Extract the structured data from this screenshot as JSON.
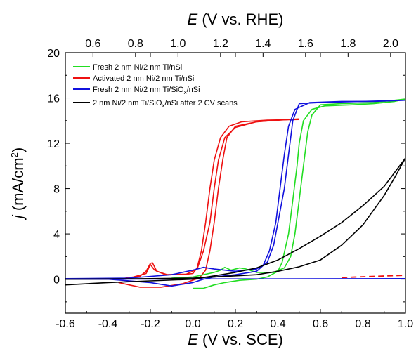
{
  "chart_data": {
    "type": "line",
    "x_axis": {
      "label_symbol": "E",
      "label_rest": " (V vs. SCE)",
      "range": [
        -0.6,
        1.0
      ],
      "ticks": [
        -0.6,
        -0.4,
        -0.2,
        0.0,
        0.2,
        0.4,
        0.6,
        0.8,
        1.0
      ],
      "tick_labels": [
        "-0.6",
        "-0.4",
        "-0.2",
        "0.0",
        "0.2",
        "0.4",
        "0.6",
        "0.8",
        "1.0"
      ]
    },
    "x2_axis": {
      "label_symbol": "E",
      "label_rest": " (V vs. RHE)",
      "offset_from_x": 1.07,
      "ticks": [
        0.6,
        0.8,
        1.0,
        1.2,
        1.4,
        1.6,
        1.8,
        2.0
      ],
      "tick_labels": [
        "0.6",
        "0.8",
        "1.0",
        "1.2",
        "1.4",
        "1.6",
        "1.8",
        "2.0"
      ]
    },
    "y_axis": {
      "label_symbol": "j",
      "label_rest": " (mA/cm",
      "label_sup": "2",
      "label_close": ")",
      "range": [
        -3,
        20
      ],
      "ticks": [
        0,
        4,
        8,
        12,
        16,
        20
      ],
      "tick_labels": [
        "0",
        "4",
        "8",
        "12",
        "16",
        "20"
      ]
    },
    "legend": {
      "position": "top-left",
      "entries": [
        {
          "color": "#22dd22",
          "parts": [
            {
              "t": "Fresh 2 nm Ni/2 nm Ti/nSi"
            }
          ]
        },
        {
          "color": "#ee1111",
          "parts": [
            {
              "t": "Activated 2 nm Ni/2 nm Ti/nSi"
            }
          ]
        },
        {
          "color": "#1111dd",
          "parts": [
            {
              "t": "Fresh 2 nm Ni/2 nm Ti/SiO"
            },
            {
              "t": "x",
              "sub": true
            },
            {
              "t": "/nSi"
            }
          ]
        },
        {
          "color": "#000000",
          "parts": [
            {
              "t": "2 nm Ni/2 nm Ti/SiO"
            },
            {
              "t": "x",
              "sub": true
            },
            {
              "t": "/nSi after 2 CV scans"
            }
          ]
        }
      ]
    },
    "series": [
      {
        "color": "#ee1111",
        "paths": [
          [
            [
              -0.6,
              0.05
            ],
            [
              -0.4,
              0.0
            ],
            [
              -0.3,
              0.1
            ],
            [
              -0.25,
              0.25
            ],
            [
              -0.22,
              0.7
            ],
            [
              -0.2,
              1.4
            ],
            [
              -0.19,
              1.45
            ],
            [
              -0.17,
              0.7
            ],
            [
              -0.12,
              0.4
            ],
            [
              -0.05,
              0.4
            ],
            [
              0.0,
              0.5
            ],
            [
              0.02,
              1.0
            ],
            [
              0.04,
              2.5
            ],
            [
              0.06,
              5.0
            ],
            [
              0.08,
              8.0
            ],
            [
              0.1,
              10.5
            ],
            [
              0.13,
              12.5
            ],
            [
              0.17,
              13.5
            ],
            [
              0.23,
              13.9
            ],
            [
              0.35,
              14.05
            ],
            [
              0.5,
              14.1
            ]
          ],
          [
            [
              0.5,
              14.15
            ],
            [
              0.4,
              14.05
            ],
            [
              0.3,
              13.9
            ],
            [
              0.2,
              13.5
            ],
            [
              0.16,
              12.5
            ],
            [
              0.14,
              10.5
            ],
            [
              0.12,
              8.0
            ],
            [
              0.1,
              5.0
            ],
            [
              0.08,
              2.5
            ],
            [
              0.06,
              0.8
            ],
            [
              0.03,
              0.1
            ],
            [
              -0.05,
              -0.4
            ],
            [
              -0.15,
              -0.7
            ],
            [
              -0.25,
              -0.7
            ],
            [
              -0.3,
              -0.5
            ],
            [
              -0.35,
              -0.3
            ]
          ],
          [
            [
              -0.35,
              0.0
            ],
            [
              -0.28,
              0.2
            ],
            [
              -0.22,
              0.5
            ],
            [
              -0.2,
              1.3
            ],
            [
              -0.18,
              0.8
            ],
            [
              -0.13,
              0.4
            ],
            [
              -0.03,
              0.45
            ],
            [
              0.02,
              0.9
            ],
            [
              0.05,
              2.5
            ],
            [
              0.08,
              5.0
            ],
            [
              0.1,
              8.0
            ],
            [
              0.12,
              10.5
            ],
            [
              0.15,
              12.5
            ],
            [
              0.2,
              13.4
            ],
            [
              0.3,
              13.9
            ],
            [
              0.45,
              14.1
            ],
            [
              0.5,
              14.15
            ]
          ]
        ],
        "dashed": [
          [
            0.7,
            0.15
          ],
          [
            1.0,
            0.35
          ]
        ]
      },
      {
        "color": "#22dd22",
        "paths": [
          [
            [
              0.0,
              -0.8
            ],
            [
              0.05,
              -0.8
            ],
            [
              0.1,
              -0.5
            ],
            [
              0.15,
              -0.3
            ],
            [
              0.22,
              -0.1
            ],
            [
              0.3,
              0.0
            ],
            [
              0.35,
              0.2
            ],
            [
              0.4,
              0.7
            ],
            [
              0.42,
              1.5
            ],
            [
              0.45,
              4.0
            ],
            [
              0.47,
              7.0
            ],
            [
              0.49,
              10.0
            ],
            [
              0.5,
              12.0
            ],
            [
              0.52,
              14.0
            ],
            [
              0.56,
              15.0
            ],
            [
              0.62,
              15.3
            ],
            [
              0.75,
              15.4
            ],
            [
              0.85,
              15.5
            ],
            [
              0.95,
              15.7
            ],
            [
              1.0,
              15.9
            ]
          ],
          [
            [
              1.0,
              15.9
            ],
            [
              0.85,
              15.6
            ],
            [
              0.7,
              15.5
            ],
            [
              0.6,
              15.4
            ],
            [
              0.56,
              14.5
            ],
            [
              0.54,
              13.0
            ],
            [
              0.52,
              10.0
            ],
            [
              0.5,
              7.0
            ],
            [
              0.48,
              4.0
            ],
            [
              0.46,
              2.0
            ],
            [
              0.43,
              1.0
            ],
            [
              0.38,
              0.6
            ],
            [
              0.3,
              0.6
            ],
            [
              0.25,
              0.9
            ],
            [
              0.22,
              1.0
            ],
            [
              0.18,
              0.8
            ],
            [
              0.15,
              1.05
            ],
            [
              0.13,
              0.8
            ],
            [
              0.1,
              0.6
            ],
            [
              0.05,
              0.4
            ],
            [
              0.0,
              0.2
            ],
            [
              -0.1,
              0.1
            ]
          ]
        ]
      },
      {
        "color": "#1111dd",
        "paths": [
          [
            [
              -0.6,
              0.0
            ],
            [
              -0.4,
              0.0
            ],
            [
              -0.2,
              -0.3
            ],
            [
              -0.1,
              -0.6
            ],
            [
              0.0,
              -0.3
            ],
            [
              0.05,
              0.0
            ],
            [
              0.1,
              0.2
            ],
            [
              0.2,
              0.4
            ],
            [
              0.3,
              0.7
            ],
            [
              0.33,
              1.2
            ],
            [
              0.36,
              2.5
            ],
            [
              0.39,
              5.0
            ],
            [
              0.41,
              8.0
            ],
            [
              0.43,
              11.0
            ],
            [
              0.45,
              13.5
            ],
            [
              0.48,
              15.0
            ],
            [
              0.55,
              15.6
            ],
            [
              0.7,
              15.7
            ],
            [
              0.85,
              15.7
            ],
            [
              1.0,
              15.8
            ]
          ],
          [
            [
              1.0,
              15.8
            ],
            [
              0.8,
              15.7
            ],
            [
              0.6,
              15.6
            ],
            [
              0.5,
              15.5
            ],
            [
              0.47,
              14.0
            ],
            [
              0.45,
              11.0
            ],
            [
              0.43,
              8.0
            ],
            [
              0.4,
              5.0
            ],
            [
              0.38,
              3.0
            ],
            [
              0.35,
              1.5
            ],
            [
              0.3,
              0.9
            ],
            [
              0.2,
              0.7
            ],
            [
              0.1,
              0.9
            ],
            [
              0.05,
              1.05
            ],
            [
              0.0,
              0.8
            ],
            [
              -0.1,
              0.4
            ],
            [
              -0.3,
              0.1
            ],
            [
              -0.6,
              0.05
            ]
          ]
        ],
        "flat": [
          [
            -0.6,
            0.0
          ],
          [
            1.0,
            0.05
          ]
        ]
      },
      {
        "color": "#000000",
        "paths": [
          [
            [
              -0.6,
              -0.5
            ],
            [
              -0.4,
              -0.3
            ],
            [
              -0.2,
              -0.15
            ],
            [
              0.0,
              0.0
            ],
            [
              0.1,
              0.3
            ],
            [
              0.2,
              0.6
            ],
            [
              0.3,
              1.0
            ],
            [
              0.4,
              1.7
            ],
            [
              0.5,
              2.7
            ],
            [
              0.6,
              3.8
            ],
            [
              0.7,
              5.0
            ],
            [
              0.8,
              6.5
            ],
            [
              0.9,
              8.2
            ],
            [
              1.0,
              10.7
            ]
          ],
          [
            [
              1.0,
              10.7
            ],
            [
              0.95,
              9.0
            ],
            [
              0.9,
              7.4
            ],
            [
              0.8,
              4.8
            ],
            [
              0.7,
              3.0
            ],
            [
              0.6,
              1.7
            ],
            [
              0.5,
              1.1
            ],
            [
              0.4,
              0.7
            ],
            [
              0.3,
              0.4
            ],
            [
              0.2,
              0.3
            ],
            [
              0.1,
              0.2
            ],
            [
              0.0,
              0.1
            ],
            [
              -0.2,
              0.05
            ],
            [
              -0.4,
              0.02
            ],
            [
              -0.6,
              0.0
            ]
          ]
        ]
      }
    ]
  }
}
